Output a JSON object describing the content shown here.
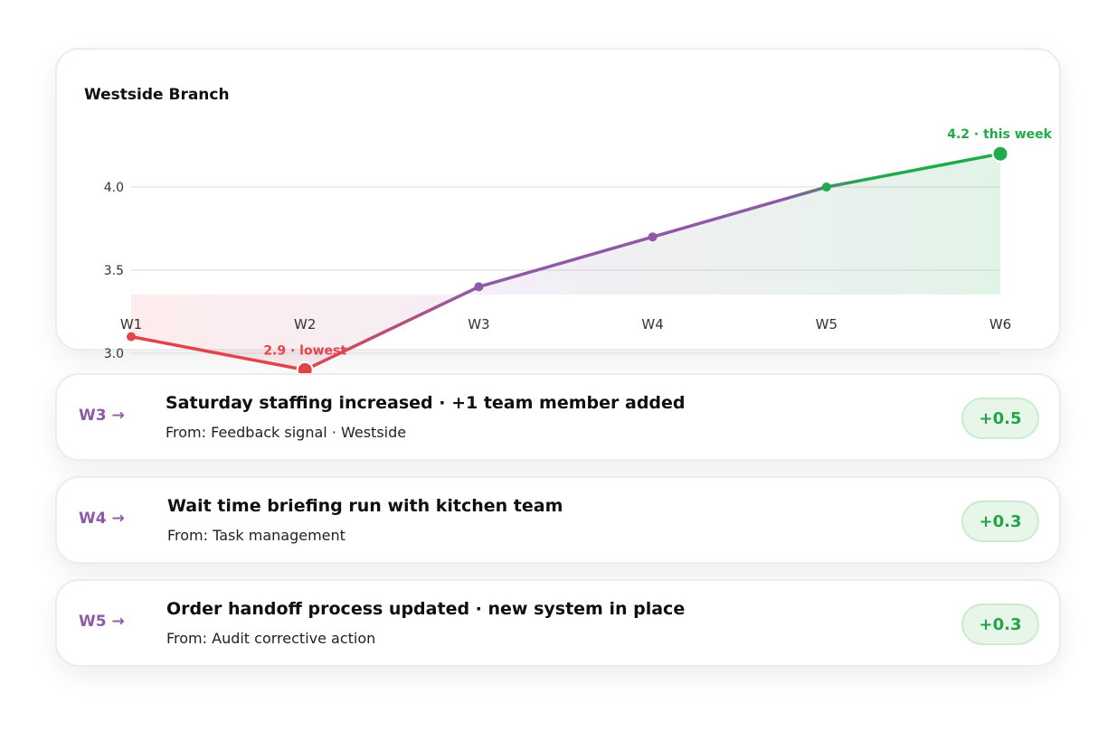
{
  "chart_data": {
    "type": "line",
    "title": "Westside Branch",
    "categories": [
      "W1",
      "W2",
      "W3",
      "W4",
      "W5",
      "W6"
    ],
    "values": [
      3.1,
      2.9,
      3.4,
      3.7,
      4.0,
      4.2
    ],
    "y_ticks": [
      "3.0",
      "3.5",
      "4.0"
    ],
    "ylim": [
      2.7,
      4.3
    ],
    "grid": true,
    "annotations": [
      {
        "index": 1,
        "text": "2.9 · lowest",
        "color": "#e4434b"
      },
      {
        "index": 5,
        "text": "4.2 · this week",
        "color": "#1fab4a"
      }
    ],
    "colors": {
      "low": "#e4434b",
      "mid": "#8e5aa5",
      "high": "#1fab4a"
    }
  },
  "events": [
    {
      "week": "W3 →",
      "title": "Saturday staffing increased · +1 team member added",
      "source": "From: Feedback signal · Westside",
      "delta": "+0.5"
    },
    {
      "week": "W4 →",
      "title": "Wait time briefing run with kitchen team",
      "source": "From: Task management",
      "delta": "+0.3"
    },
    {
      "week": "W5 →",
      "title": "Order handoff process updated · new system in place",
      "source": "From: Audit corrective action",
      "delta": "+0.3"
    }
  ]
}
